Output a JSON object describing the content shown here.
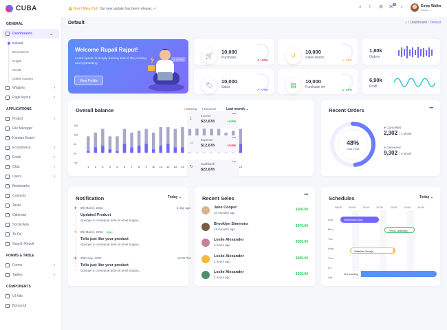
{
  "brand": {
    "name": "CUBA"
  },
  "topbar": {
    "notice_bold": "Don't Miss Out!",
    "notice_text": " Out new update has been release.",
    "notice_arrow": "↗",
    "icons": [
      "search-icon",
      "moon-icon",
      "settings-icon",
      "chat-icon",
      "bell-icon"
    ],
    "notif_count": "4",
    "user_name": "Emay Walter",
    "user_role": "Admin"
  },
  "page": {
    "title": "Default",
    "breadcrumb": [
      "Dashboard",
      "Default"
    ]
  },
  "sidebar": {
    "general_title": "GENERAL",
    "dashboards": "Dashboards",
    "dash_sub": [
      "Default",
      "Ecommerce",
      "Crypto",
      "Social",
      "Online courses"
    ],
    "widgets": "Widgets",
    "page_layout": "Page layout",
    "apps_title": "APPLICATIONS",
    "apps": [
      "Project",
      "File Manager",
      "Kanban Board",
      "Ecommerce",
      "Email",
      "Chat",
      "Users",
      "Bookmarks",
      "Contacts",
      "Tasks",
      "Calendar",
      "Social App",
      "To-Do",
      "Search Result"
    ],
    "forms_title": "FORMS & TABLE",
    "forms": [
      "Forms",
      "Tables"
    ],
    "components_title": "COMPONENTS",
    "components": [
      "UI Kits",
      "Bonus UI"
    ]
  },
  "welcome": {
    "title": "Welcome Rupali Rajput!",
    "text": "Lorem ipsum is simply dummy text of the printing and typesetting",
    "button": "View Profile",
    "time": "2:10 PM"
  },
  "stats": [
    {
      "value": "10,000",
      "label": "Purchase",
      "change": "+50%",
      "color": "#f73164",
      "icon": "cart-icon"
    },
    {
      "value": "10,000",
      "label": "Sales return",
      "change": "-20%",
      "color": "#f5b83a",
      "icon": "return-icon"
    },
    {
      "value": "10,000",
      "label": "Sales",
      "change": "+70%",
      "color": "#7366ff",
      "icon": "tag-icon"
    },
    {
      "value": "10,000",
      "label": "Purchase ret",
      "change": "-40%",
      "color": "#35bf5c",
      "icon": "doc-icon"
    }
  ],
  "small_stats": [
    {
      "value": "1,80k",
      "label": "Orders"
    },
    {
      "value": "6,90k",
      "label": "Profit"
    }
  ],
  "balance": {
    "title": "Overall balance",
    "legend": [
      "Earning",
      "Expense"
    ],
    "filter": "Last month",
    "items": [
      {
        "title": "Income",
        "value": "$22,678",
        "change": "+$456",
        "color": "#35bf5c",
        "icon": "download-icon"
      },
      {
        "title": "Expense",
        "value": "$12,678",
        "change": "+$456",
        "color": "#f73164",
        "icon": "card-icon"
      },
      {
        "title": "Cashback",
        "value": "$22,678",
        "change": "",
        "color": "#2c323f",
        "icon": "refresh-icon"
      }
    ]
  },
  "chart_data": {
    "type": "bar",
    "categories": [
      "1",
      "2",
      "3",
      "4",
      "5",
      "6",
      "7",
      "8",
      "9",
      "10",
      "11",
      "12",
      "13",
      "14",
      "15",
      "16",
      "17",
      "18",
      "19",
      "20",
      "21",
      "22"
    ],
    "yticks": [
      "15k",
      "10k",
      "5k",
      "0k",
      "-5k"
    ],
    "series": [
      {
        "name": "Earning",
        "values": [
          1,
          3,
          4,
          2,
          1,
          5,
          3,
          4,
          5,
          2,
          4,
          5,
          3,
          3,
          4,
          5,
          5,
          4,
          4,
          1,
          3,
          5
        ]
      },
      {
        "name": "Expense",
        "values": [
          9,
          11,
          13,
          9,
          9,
          13,
          11,
          12,
          13,
          11,
          14,
          14,
          13,
          14,
          13,
          14,
          14,
          13,
          13,
          11,
          12,
          13
        ]
      }
    ],
    "ylim": [
      -5,
      15
    ],
    "xlabel": "",
    "ylabel": ""
  },
  "orders": {
    "title": "Recent Orders",
    "percent": "48%",
    "sublabel": "Total Profit",
    "legend": [
      {
        "name": "Cancelled",
        "value": "2,302",
        "sub": "| 1 Month",
        "color": "#7366ff"
      },
      {
        "name": "Delivered",
        "value": "9,302",
        "sub": "| 6 Month",
        "color": "#5b8ffa"
      }
    ],
    "progress": 0.48
  },
  "notification": {
    "title": "Notification",
    "filter": "Today",
    "items": [
      {
        "date": "8th March, 2022",
        "time": "1 day ago",
        "title": "Updated Product",
        "desc": "Quisque a consequat ante sit amet magna...",
        "badge": "",
        "color": "#7366ff"
      },
      {
        "date": "8th March, 2022",
        "time": "",
        "title": "Tello just like your product",
        "desc": "Quisque a consequat ante sit amet magna...",
        "badge": "New",
        "color": "#ff9f40"
      },
      {
        "date": "20th Sep, 2022",
        "time": "12:00 PM",
        "title": "Tello just like your product",
        "desc": "Quisque a consequat ante sit amet magna...",
        "badge": "",
        "color": "#f73164"
      }
    ]
  },
  "sales": {
    "title": "Recent Seles",
    "items": [
      {
        "name": "Jane Cooper",
        "time": "10 minutes ago",
        "amount": "$200.00",
        "color": "#d9b38c"
      },
      {
        "name": "Brooklyn Simmons",
        "time": "19 minutes ago",
        "amount": "$970.00",
        "color": "#7a5c46"
      },
      {
        "name": "Leslie Alexander",
        "time": "2 hours ago",
        "amount": "$300.00",
        "color": "#c77f9a"
      },
      {
        "name": "Leslie Alexander",
        "time": "2 hours ago",
        "amount": "$900.00",
        "color": "#f5b83a"
      },
      {
        "name": "Leslie Alexander",
        "time": "2 hours ago",
        "amount": "$300.00",
        "color": "#4f8f6a"
      }
    ]
  },
  "schedules": {
    "title": "Schedules",
    "filter": "Today",
    "times": [
      "08:00",
      "09:00",
      "10:00",
      "11:00",
      "12:00",
      "13:00",
      "14:00"
    ],
    "days": [
      "Sun",
      "Mon",
      "Tue",
      "Wed",
      "Thu",
      "Fri",
      "Sat"
    ],
    "events": [
      {
        "label": "Dashboard App",
        "color": "#7366ff",
        "filled": true
      },
      {
        "label": "HTML Learning",
        "color": "#35bf5c",
        "filled": false
      },
      {
        "label": "Website Design",
        "color": "#f5b83a",
        "filled": false
      },
      {
        "label": "UI Learning",
        "color": "#5b8ffa",
        "filled": true
      }
    ]
  }
}
